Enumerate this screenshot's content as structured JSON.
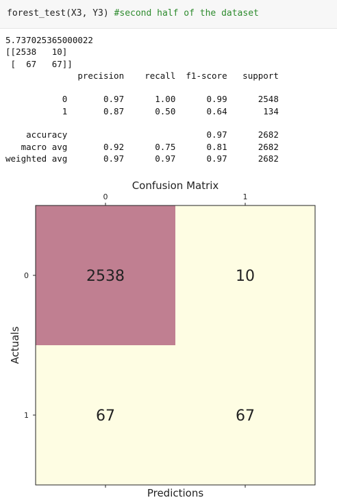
{
  "cell": {
    "code_call": "forest_test(X3, Y3) ",
    "code_comment": "#second half of the dataset"
  },
  "output": {
    "lines": [
      "5.737025365000022",
      "[[2538   10]",
      " [  67   67]]",
      "              precision    recall  f1-score   support",
      "",
      "           0       0.97      1.00      0.99      2548",
      "           1       0.87      0.50      0.64       134",
      "",
      "    accuracy                           0.97      2682",
      "   macro avg       0.92      0.75      0.81      2682",
      "weighted avg       0.97      0.97      0.97      2682"
    ]
  },
  "chart_data": {
    "type": "heatmap",
    "title": "Confusion Matrix",
    "xlabel": "Predictions",
    "ylabel": "Actuals",
    "x_ticks": [
      "0",
      "1"
    ],
    "y_ticks": [
      "0",
      "1"
    ],
    "values": [
      [
        2538,
        10
      ],
      [
        67,
        67
      ]
    ],
    "colors": {
      "high": "#c07f91",
      "low": "#fefde3"
    }
  }
}
